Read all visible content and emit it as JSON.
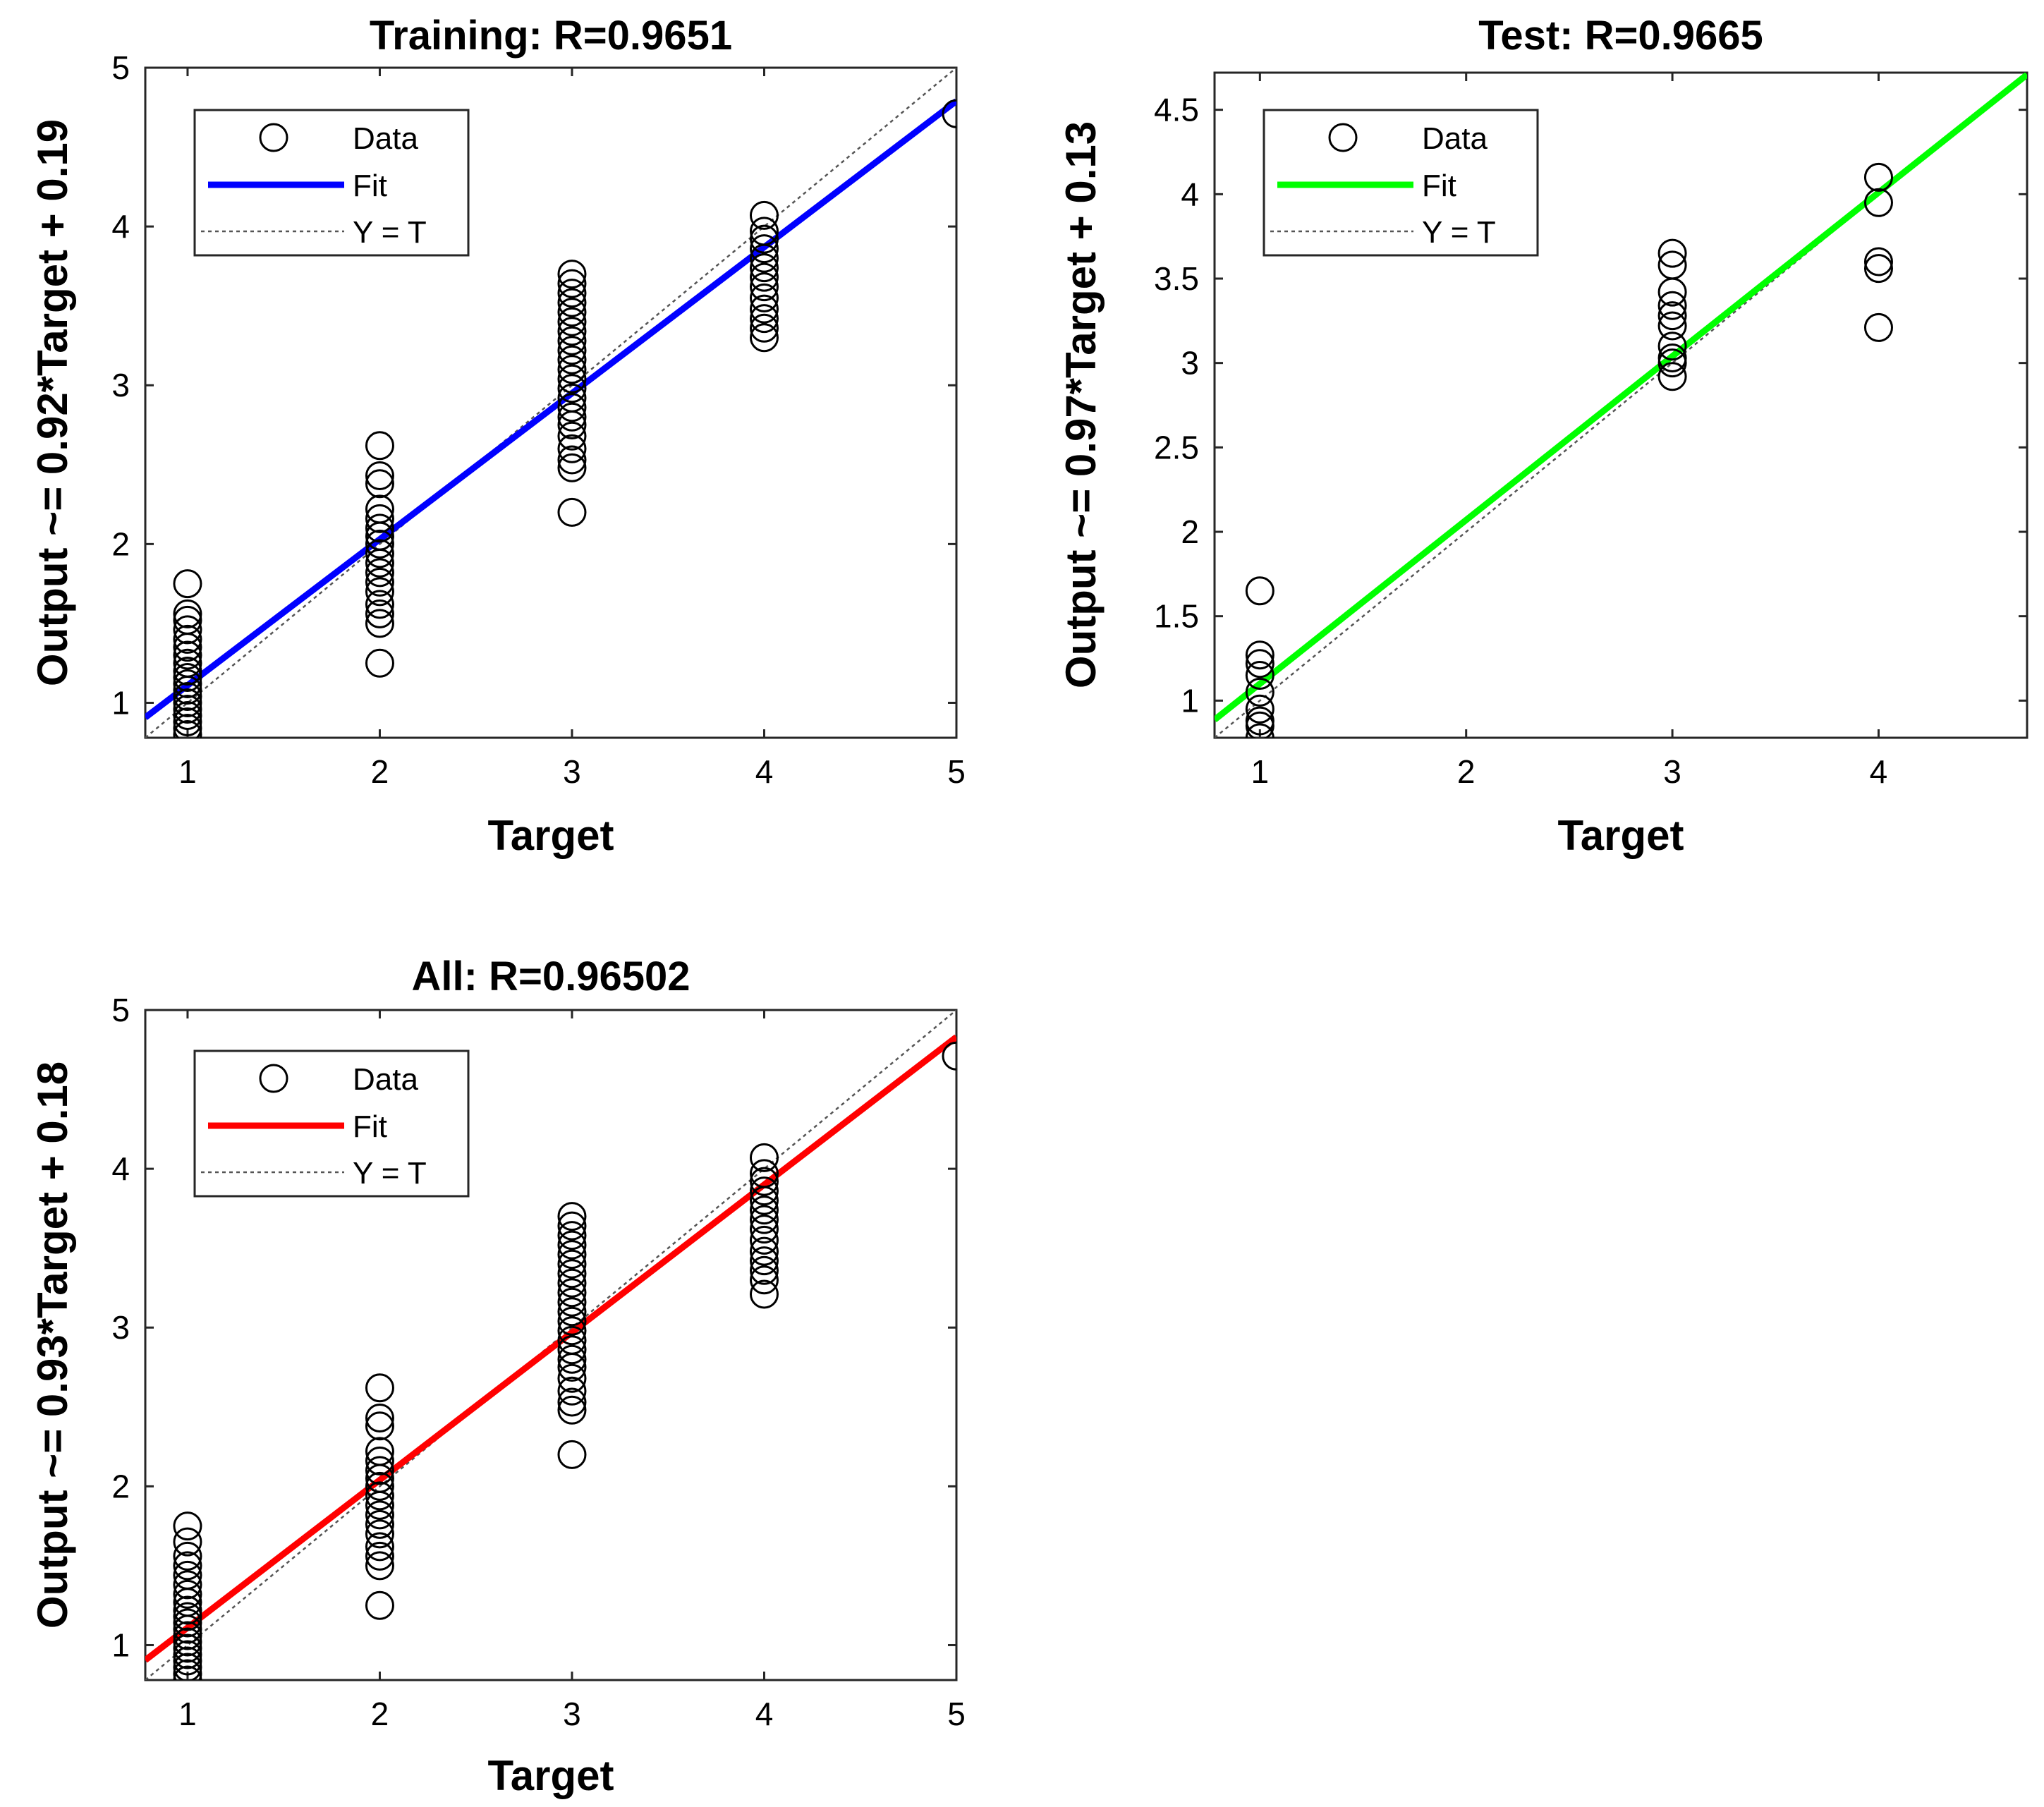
{
  "chart_data": [
    {
      "type": "scatter",
      "id": "training",
      "title": "Training: R=0.9651",
      "xlabel": "Target",
      "ylabel": "Output ~= 0.92*Target + 0.19",
      "xlim": [
        0.78,
        5.0
      ],
      "ylim": [
        0.78,
        5.0
      ],
      "xticks": [
        1,
        2,
        3,
        4,
        5
      ],
      "yticks": [
        1,
        2,
        3,
        4,
        5
      ],
      "fit": {
        "slope": 0.92,
        "intercept": 0.19,
        "color": "#0000ff",
        "x_end": 5.0
      },
      "identity_line": true,
      "legend": {
        "placement": "top-left",
        "entries": [
          "Data",
          "Fit",
          "Y = T"
        ]
      },
      "series": [
        {
          "x": 1,
          "values": [
            0.8,
            0.84,
            0.88,
            0.92,
            0.96,
            1.0,
            1.04,
            1.08,
            1.12,
            1.16,
            1.2,
            1.25,
            1.3,
            1.35,
            1.4,
            1.46,
            1.52,
            1.56,
            1.75
          ]
        },
        {
          "x": 2,
          "values": [
            1.25,
            1.5,
            1.56,
            1.62,
            1.7,
            1.76,
            1.82,
            1.88,
            1.94,
            2.0,
            2.05,
            2.1,
            2.16,
            2.22,
            2.38,
            2.43,
            2.62
          ]
        },
        {
          "x": 3,
          "values": [
            2.2,
            2.48,
            2.53,
            2.6,
            2.68,
            2.75,
            2.8,
            2.86,
            2.92,
            2.98,
            3.04,
            3.1,
            3.16,
            3.22,
            3.28,
            3.34,
            3.4,
            3.46,
            3.52,
            3.58,
            3.64,
            3.7
          ]
        },
        {
          "x": 4,
          "values": [
            3.3,
            3.36,
            3.42,
            3.48,
            3.55,
            3.62,
            3.68,
            3.74,
            3.8,
            3.86,
            3.92,
            3.97,
            4.07
          ]
        },
        {
          "x": 5,
          "values": [
            4.71
          ]
        }
      ]
    },
    {
      "type": "scatter",
      "id": "test",
      "title": "Test: R=0.9665",
      "xlabel": "Target",
      "ylabel": "Output ~= 0.97*Target + 0.13",
      "xlim": [
        0.78,
        4.72
      ],
      "ylim": [
        0.78,
        4.72
      ],
      "xticks": [
        1,
        2,
        3,
        4
      ],
      "yticks": [
        1,
        1.5,
        2,
        2.5,
        3,
        3.5,
        4,
        4.5
      ],
      "fit": {
        "slope": 0.97,
        "intercept": 0.13,
        "color": "#00ff00",
        "x_end": 4.72
      },
      "identity_line": true,
      "legend": {
        "placement": "top-left",
        "entries": [
          "Data",
          "Fit",
          "Y = T"
        ]
      },
      "series": [
        {
          "x": 1,
          "values": [
            0.78,
            0.85,
            0.88,
            0.95,
            1.05,
            1.15,
            1.22,
            1.27,
            1.65
          ]
        },
        {
          "x": 3,
          "values": [
            2.92,
            3.0,
            3.03,
            3.1,
            3.22,
            3.28,
            3.34,
            3.42,
            3.58,
            3.65
          ]
        },
        {
          "x": 4,
          "values": [
            3.21,
            3.56,
            3.6,
            3.95,
            4.1
          ]
        }
      ]
    },
    {
      "type": "scatter",
      "id": "all",
      "title": "All: R=0.96502",
      "xlabel": "Target",
      "ylabel": "Output ~= 0.93*Target + 0.18",
      "xlim": [
        0.78,
        5.0
      ],
      "ylim": [
        0.78,
        5.0
      ],
      "xticks": [
        1,
        2,
        3,
        4,
        5
      ],
      "yticks": [
        1,
        2,
        3,
        4,
        5
      ],
      "fit": {
        "slope": 0.93,
        "intercept": 0.18,
        "color": "#ff0000",
        "x_end": 5.0
      },
      "identity_line": true,
      "legend": {
        "placement": "top-left",
        "entries": [
          "Data",
          "Fit",
          "Y = T"
        ]
      },
      "series": [
        {
          "x": 1,
          "values": [
            0.78,
            0.82,
            0.86,
            0.9,
            0.94,
            0.98,
            1.02,
            1.06,
            1.1,
            1.14,
            1.18,
            1.22,
            1.27,
            1.32,
            1.38,
            1.44,
            1.5,
            1.56,
            1.65,
            1.75
          ]
        },
        {
          "x": 2,
          "values": [
            1.25,
            1.5,
            1.56,
            1.62,
            1.7,
            1.76,
            1.82,
            1.88,
            1.94,
            2.0,
            2.05,
            2.1,
            2.16,
            2.22,
            2.38,
            2.43,
            2.62
          ]
        },
        {
          "x": 3,
          "values": [
            2.2,
            2.48,
            2.53,
            2.6,
            2.68,
            2.75,
            2.8,
            2.86,
            2.92,
            2.98,
            3.04,
            3.1,
            3.16,
            3.22,
            3.28,
            3.34,
            3.4,
            3.46,
            3.52,
            3.58,
            3.64,
            3.7
          ]
        },
        {
          "x": 4,
          "values": [
            3.21,
            3.3,
            3.36,
            3.42,
            3.48,
            3.55,
            3.62,
            3.68,
            3.74,
            3.8,
            3.86,
            3.92,
            3.97,
            4.07
          ]
        },
        {
          "x": 5,
          "values": [
            4.71
          ]
        }
      ]
    }
  ]
}
